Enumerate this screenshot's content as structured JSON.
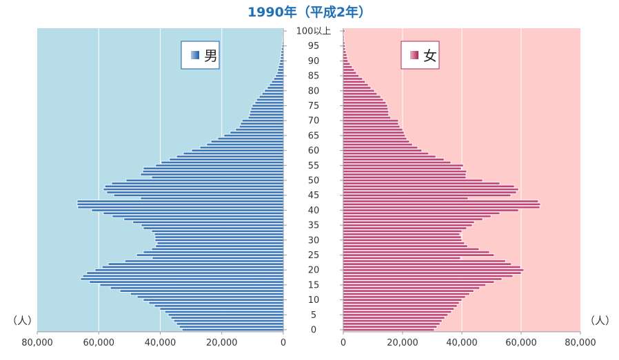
{
  "unit_label": "（人）",
  "colors": {
    "title": "#1f70b8",
    "male_panel": "#b7dde8",
    "female_panel": "#ffcccc",
    "male_bar": "#1f5fa6",
    "female_bar": "#ad2459",
    "male_legend_border": "#1f5fa6",
    "female_legend_border": "#a8285b"
  },
  "chart_data": {
    "type": "bar",
    "orientation": "horizontal",
    "layout": "population-pyramid",
    "title": "1990年（平成2年）",
    "xlabel": "（人）",
    "ylabel": "",
    "xlim": [
      0,
      80000
    ],
    "x_ticks": [
      0,
      20000,
      40000,
      60000,
      80000
    ],
    "x_tick_labels": [
      "0",
      "20,000",
      "40,000",
      "60,000",
      "80,000"
    ],
    "age_ticks": [
      0,
      5,
      10,
      15,
      20,
      25,
      30,
      35,
      40,
      45,
      50,
      55,
      60,
      65,
      70,
      75,
      80,
      85,
      90,
      95,
      100
    ],
    "age_tick_labels": [
      "0",
      "5",
      "10",
      "15",
      "20",
      "25",
      "30",
      "35",
      "40",
      "45",
      "50",
      "55",
      "60",
      "65",
      "70",
      "75",
      "80",
      "85",
      "90",
      "95",
      "100以上"
    ],
    "categories": [
      0,
      1,
      2,
      3,
      4,
      5,
      6,
      7,
      8,
      9,
      10,
      11,
      12,
      13,
      14,
      15,
      16,
      17,
      18,
      19,
      20,
      21,
      22,
      23,
      24,
      25,
      26,
      27,
      28,
      29,
      30,
      31,
      32,
      33,
      34,
      35,
      36,
      37,
      38,
      39,
      40,
      41,
      42,
      43,
      44,
      45,
      46,
      47,
      48,
      49,
      50,
      51,
      52,
      53,
      54,
      55,
      56,
      57,
      58,
      59,
      60,
      61,
      62,
      63,
      64,
      65,
      66,
      67,
      68,
      69,
      70,
      71,
      72,
      73,
      74,
      75,
      76,
      77,
      78,
      79,
      80,
      81,
      82,
      83,
      84,
      85,
      86,
      87,
      88,
      89,
      90,
      91,
      92,
      93,
      94,
      95,
      96,
      97,
      98,
      99,
      100
    ],
    "grid": true,
    "legend_position": "top-inside",
    "series": [
      {
        "name": "男",
        "values": [
          32900,
          33800,
          34700,
          35600,
          36500,
          37400,
          38500,
          40100,
          41900,
          43700,
          45500,
          47500,
          49700,
          53100,
          56200,
          59600,
          63000,
          65900,
          65200,
          63900,
          61200,
          58900,
          56900,
          51500,
          42600,
          47700,
          45500,
          42800,
          41500,
          41000,
          41700,
          41700,
          41900,
          42800,
          45500,
          46200,
          48900,
          51800,
          55600,
          58500,
          62300,
          66800,
          67000,
          67000,
          46400,
          55100,
          57400,
          58500,
          58000,
          55800,
          51100,
          42800,
          46400,
          45700,
          45500,
          41500,
          39700,
          37000,
          34700,
          32500,
          29800,
          27100,
          24900,
          23500,
          21300,
          19300,
          17300,
          15500,
          14300,
          13900,
          13400,
          11400,
          11000,
          10800,
          10500,
          10100,
          9200,
          8700,
          7800,
          6900,
          6100,
          5200,
          4500,
          3800,
          3100,
          2500,
          2000,
          1800,
          1600,
          1300,
          1100,
          900,
          800,
          700,
          600,
          400,
          300,
          200,
          200,
          100,
          200
        ]
      },
      {
        "name": "女",
        "values": [
          30700,
          31600,
          32600,
          33300,
          34200,
          35300,
          36500,
          37400,
          38400,
          39100,
          40000,
          41200,
          42600,
          44000,
          46000,
          48100,
          50900,
          53500,
          57200,
          60000,
          60900,
          59800,
          56700,
          54700,
          39500,
          50900,
          49300,
          45800,
          41900,
          40900,
          40000,
          39800,
          39300,
          40000,
          41600,
          43500,
          44200,
          47000,
          49800,
          52800,
          59100,
          66300,
          66500,
          65800,
          42100,
          56500,
          58400,
          59100,
          57700,
          52800,
          47000,
          41400,
          41400,
          41600,
          39800,
          40500,
          36300,
          34000,
          31200,
          28800,
          26500,
          25100,
          23300,
          22300,
          21400,
          20900,
          20500,
          20000,
          19100,
          18600,
          18600,
          16000,
          15300,
          15300,
          15100,
          14900,
          14400,
          13500,
          12600,
          11400,
          10500,
          9300,
          8400,
          7400,
          6500,
          5300,
          4400,
          3700,
          3000,
          2300,
          1600,
          1400,
          1200,
          900,
          700,
          600,
          500,
          300,
          300,
          200,
          500
        ]
      }
    ]
  }
}
